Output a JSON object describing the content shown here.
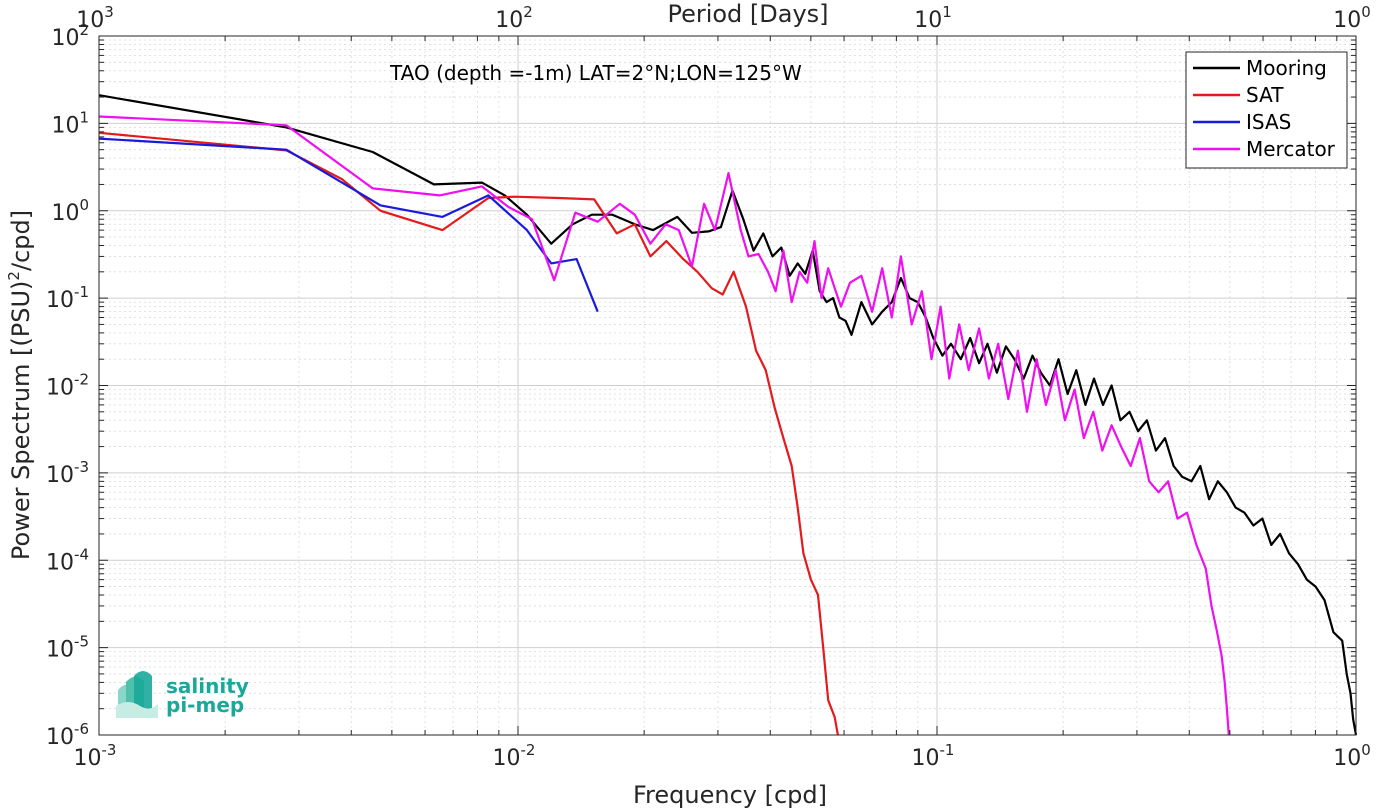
{
  "chart_data": {
    "type": "line",
    "title": "",
    "annotation": "TAO (depth =-1m) LAT=2°N;LON=125°W",
    "xlabel": "Frequency [cpd]",
    "ylabel": "Power Spectrum [(PSU)²/cpd]",
    "ylabel_parts": {
      "main": "Power Spectrum [(PSU)",
      "sup": "2",
      "tail": "/cpd]"
    },
    "x2label": "Period [Days]",
    "xscale": "log",
    "yscale": "log",
    "xlim": [
      0.001,
      1
    ],
    "ylim": [
      1e-06,
      100
    ],
    "grid": true,
    "minor_grid": true,
    "legend_position": "top-right",
    "x_ticks": [
      {
        "value": 0.001,
        "base": "10",
        "exp": "-3"
      },
      {
        "value": 0.01,
        "base": "10",
        "exp": "-2"
      },
      {
        "value": 0.1,
        "base": "10",
        "exp": "-1"
      },
      {
        "value": 1,
        "base": "10",
        "exp": "0"
      }
    ],
    "top_ticks": [
      {
        "value": 1000,
        "base": "10",
        "exp": "3"
      },
      {
        "value": 100,
        "base": "10",
        "exp": "2"
      },
      {
        "value": 10,
        "base": "10",
        "exp": "1"
      },
      {
        "value": 1,
        "base": "10",
        "exp": "0"
      }
    ],
    "y_ticks": [
      {
        "value": 100,
        "base": "10",
        "exp": "2"
      },
      {
        "value": 10,
        "base": "10",
        "exp": "1"
      },
      {
        "value": 1,
        "base": "10",
        "exp": "0"
      },
      {
        "value": 0.1,
        "base": "10",
        "exp": "-1"
      },
      {
        "value": 0.01,
        "base": "10",
        "exp": "-2"
      },
      {
        "value": 0.001,
        "base": "10",
        "exp": "-3"
      },
      {
        "value": 0.0001,
        "base": "10",
        "exp": "-4"
      },
      {
        "value": 1e-05,
        "base": "10",
        "exp": "-5"
      },
      {
        "value": 1e-06,
        "base": "10",
        "exp": "-6"
      }
    ],
    "series": [
      {
        "name": "Mooring",
        "color": "#000000",
        "points": [
          [
            0.001,
            21
          ],
          [
            0.0028,
            9
          ],
          [
            0.0045,
            4.7
          ],
          [
            0.0063,
            2
          ],
          [
            0.0082,
            2.1
          ],
          [
            0.0093,
            1.5
          ],
          [
            0.0105,
            0.9
          ],
          [
            0.012,
            0.42
          ],
          [
            0.0135,
            0.7
          ],
          [
            0.015,
            0.9
          ],
          [
            0.0168,
            0.9
          ],
          [
            0.019,
            0.7
          ],
          [
            0.021,
            0.6
          ],
          [
            0.0225,
            0.72
          ],
          [
            0.024,
            0.85
          ],
          [
            0.026,
            0.56
          ],
          [
            0.0285,
            0.58
          ],
          [
            0.0305,
            0.65
          ],
          [
            0.0325,
            1.7
          ],
          [
            0.0345,
            0.8
          ],
          [
            0.0365,
            0.35
          ],
          [
            0.0385,
            0.55
          ],
          [
            0.0405,
            0.3
          ],
          [
            0.0425,
            0.38
          ],
          [
            0.0445,
            0.18
          ],
          [
            0.0465,
            0.25
          ],
          [
            0.0485,
            0.19
          ],
          [
            0.0505,
            0.35
          ],
          [
            0.0525,
            0.12
          ],
          [
            0.0545,
            0.09
          ],
          [
            0.0565,
            0.1
          ],
          [
            0.0585,
            0.06
          ],
          [
            0.0605,
            0.055
          ],
          [
            0.0625,
            0.038
          ],
          [
            0.066,
            0.09
          ],
          [
            0.07,
            0.05
          ],
          [
            0.074,
            0.07
          ],
          [
            0.078,
            0.09
          ],
          [
            0.082,
            0.17
          ],
          [
            0.086,
            0.1
          ],
          [
            0.09,
            0.09
          ],
          [
            0.094,
            0.06
          ],
          [
            0.098,
            0.035
          ],
          [
            0.103,
            0.022
          ],
          [
            0.108,
            0.03
          ],
          [
            0.114,
            0.02
          ],
          [
            0.12,
            0.035
          ],
          [
            0.126,
            0.018
          ],
          [
            0.132,
            0.03
          ],
          [
            0.139,
            0.014
          ],
          [
            0.146,
            0.028
          ],
          [
            0.153,
            0.02
          ],
          [
            0.161,
            0.012
          ],
          [
            0.169,
            0.022
          ],
          [
            0.177,
            0.014
          ],
          [
            0.186,
            0.01
          ],
          [
            0.195,
            0.02
          ],
          [
            0.205,
            0.008
          ],
          [
            0.215,
            0.015
          ],
          [
            0.226,
            0.006
          ],
          [
            0.237,
            0.012
          ],
          [
            0.249,
            0.006
          ],
          [
            0.261,
            0.01
          ],
          [
            0.274,
            0.004
          ],
          [
            0.288,
            0.005
          ],
          [
            0.302,
            0.003
          ],
          [
            0.317,
            0.004
          ],
          [
            0.333,
            0.0018
          ],
          [
            0.35,
            0.0025
          ],
          [
            0.367,
            0.0012
          ],
          [
            0.385,
            0.0009
          ],
          [
            0.405,
            0.0008
          ],
          [
            0.425,
            0.0012
          ],
          [
            0.446,
            0.0005
          ],
          [
            0.468,
            0.0008
          ],
          [
            0.492,
            0.0006
          ],
          [
            0.516,
            0.0004
          ],
          [
            0.542,
            0.00035
          ],
          [
            0.569,
            0.00025
          ],
          [
            0.598,
            0.0003
          ],
          [
            0.628,
            0.00015
          ],
          [
            0.659,
            0.0002
          ],
          [
            0.692,
            0.00012
          ],
          [
            0.727,
            9e-05
          ],
          [
            0.763,
            6e-05
          ],
          [
            0.801,
            5e-05
          ],
          [
            0.841,
            3.5e-05
          ],
          [
            0.883,
            1.5e-05
          ],
          [
            0.927,
            1.2e-05
          ],
          [
            0.95,
            5e-06
          ],
          [
            0.97,
            3e-06
          ],
          [
            0.985,
            1.5e-06
          ],
          [
            1.0,
            1e-06
          ]
        ]
      },
      {
        "name": "SAT",
        "color": "#e41a1c",
        "points": [
          [
            0.001,
            7.8
          ],
          [
            0.0028,
            4.9
          ],
          [
            0.0038,
            2.3
          ],
          [
            0.0047,
            1.0
          ],
          [
            0.0066,
            0.6
          ],
          [
            0.0085,
            1.4
          ],
          [
            0.0098,
            1.45
          ],
          [
            0.0125,
            1.4
          ],
          [
            0.0152,
            1.35
          ],
          [
            0.0172,
            0.55
          ],
          [
            0.019,
            0.7
          ],
          [
            0.0207,
            0.3
          ],
          [
            0.0226,
            0.45
          ],
          [
            0.0248,
            0.28
          ],
          [
            0.0268,
            0.2
          ],
          [
            0.029,
            0.13
          ],
          [
            0.0308,
            0.11
          ],
          [
            0.0327,
            0.2
          ],
          [
            0.035,
            0.08
          ],
          [
            0.037,
            0.025
          ],
          [
            0.039,
            0.015
          ],
          [
            0.041,
            0.0055
          ],
          [
            0.043,
            0.0025
          ],
          [
            0.045,
            0.0012
          ],
          [
            0.0465,
            0.0004
          ],
          [
            0.048,
            0.00012
          ],
          [
            0.05,
            6e-05
          ],
          [
            0.052,
            4e-05
          ],
          [
            0.0535,
            1e-05
          ],
          [
            0.055,
            2.5e-06
          ],
          [
            0.057,
            1.6e-06
          ],
          [
            0.058,
            1e-06
          ]
        ]
      },
      {
        "name": "ISAS",
        "color": "#1a1adb",
        "points": [
          [
            0.001,
            6.7
          ],
          [
            0.0028,
            5.0
          ],
          [
            0.0047,
            1.15
          ],
          [
            0.0066,
            0.85
          ],
          [
            0.0085,
            1.5
          ],
          [
            0.0105,
            0.6
          ],
          [
            0.012,
            0.25
          ],
          [
            0.0138,
            0.28
          ],
          [
            0.0155,
            0.07
          ]
        ]
      },
      {
        "name": "Mercator",
        "color": "#ee10ee",
        "points": [
          [
            0.001,
            12
          ],
          [
            0.0028,
            9.5
          ],
          [
            0.0045,
            1.8
          ],
          [
            0.0065,
            1.5
          ],
          [
            0.0082,
            1.9
          ],
          [
            0.0095,
            1.1
          ],
          [
            0.0108,
            0.8
          ],
          [
            0.0122,
            0.16
          ],
          [
            0.0137,
            0.95
          ],
          [
            0.0155,
            0.75
          ],
          [
            0.0175,
            1.2
          ],
          [
            0.019,
            0.9
          ],
          [
            0.0207,
            0.42
          ],
          [
            0.0225,
            0.7
          ],
          [
            0.0242,
            0.6
          ],
          [
            0.026,
            0.23
          ],
          [
            0.0278,
            1.2
          ],
          [
            0.0295,
            0.6
          ],
          [
            0.0318,
            2.7
          ],
          [
            0.034,
            0.6
          ],
          [
            0.0355,
            0.3
          ],
          [
            0.0375,
            0.32
          ],
          [
            0.0395,
            0.2
          ],
          [
            0.0412,
            0.12
          ],
          [
            0.043,
            0.35
          ],
          [
            0.045,
            0.09
          ],
          [
            0.047,
            0.2
          ],
          [
            0.049,
            0.15
          ],
          [
            0.051,
            0.45
          ],
          [
            0.053,
            0.1
          ],
          [
            0.055,
            0.22
          ],
          [
            0.057,
            0.13
          ],
          [
            0.059,
            0.08
          ],
          [
            0.062,
            0.15
          ],
          [
            0.066,
            0.18
          ],
          [
            0.07,
            0.07
          ],
          [
            0.074,
            0.22
          ],
          [
            0.078,
            0.06
          ],
          [
            0.082,
            0.3
          ],
          [
            0.087,
            0.05
          ],
          [
            0.092,
            0.12
          ],
          [
            0.097,
            0.02
          ],
          [
            0.102,
            0.08
          ],
          [
            0.107,
            0.012
          ],
          [
            0.113,
            0.05
          ],
          [
            0.119,
            0.015
          ],
          [
            0.126,
            0.045
          ],
          [
            0.133,
            0.012
          ],
          [
            0.14,
            0.03
          ],
          [
            0.148,
            0.007
          ],
          [
            0.156,
            0.025
          ],
          [
            0.164,
            0.005
          ],
          [
            0.173,
            0.02
          ],
          [
            0.182,
            0.006
          ],
          [
            0.192,
            0.015
          ],
          [
            0.202,
            0.004
          ],
          [
            0.213,
            0.009
          ],
          [
            0.224,
            0.0025
          ],
          [
            0.236,
            0.005
          ],
          [
            0.248,
            0.0018
          ],
          [
            0.261,
            0.0035
          ],
          [
            0.275,
            0.002
          ],
          [
            0.29,
            0.0012
          ],
          [
            0.305,
            0.0025
          ],
          [
            0.321,
            0.0008
          ],
          [
            0.338,
            0.0006
          ],
          [
            0.356,
            0.0008
          ],
          [
            0.375,
            0.0003
          ],
          [
            0.395,
            0.00035
          ],
          [
            0.416,
            0.00015
          ],
          [
            0.438,
            8e-05
          ],
          [
            0.452,
            3e-05
          ],
          [
            0.466,
            1.5e-05
          ],
          [
            0.478,
            8e-06
          ],
          [
            0.486,
            4e-06
          ],
          [
            0.492,
            2e-06
          ],
          [
            0.497,
            1e-06
          ]
        ]
      }
    ]
  },
  "logo": {
    "line1": "salinity",
    "line2": "pi-mep",
    "color": "#1aa89a"
  }
}
